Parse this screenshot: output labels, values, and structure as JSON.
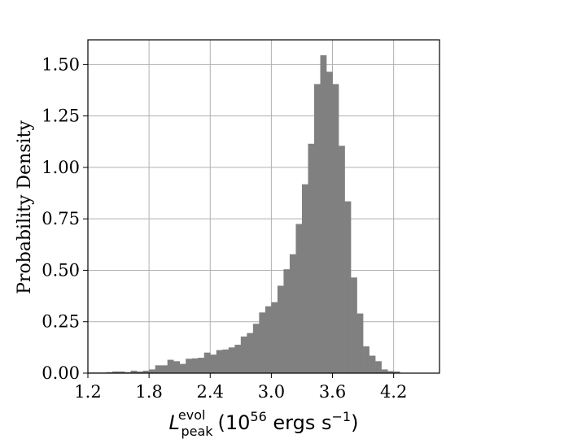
{
  "chart_data": {
    "type": "bar",
    "xlabel": {
      "symbol": "L",
      "superscript": "evol",
      "subscript": "peak",
      "units_base": "(10",
      "units_exp": "56",
      "units_mid": " ergs s",
      "units_exp2": "−1",
      "units_end": ")"
    },
    "ylabel": "Probability Density",
    "xlim": [
      1.2,
      4.65
    ],
    "ylim": [
      0.0,
      1.62
    ],
    "xticks": [
      1.2,
      1.8,
      2.4,
      3.0,
      3.6,
      4.2
    ],
    "xtick_labels": [
      "1.2",
      "1.8",
      "2.4",
      "3.0",
      "3.6",
      "4.2"
    ],
    "yticks": [
      0.0,
      0.25,
      0.5,
      0.75,
      1.0,
      1.25,
      1.5
    ],
    "ytick_labels": [
      "0.00",
      "0.25",
      "0.50",
      "0.75",
      "1.00",
      "1.25",
      "1.50"
    ],
    "grid": true,
    "bar_color": "#808080",
    "bin_start": 1.2,
    "bin_width": 0.06,
    "values": [
      0.003,
      0.003,
      0.003,
      0.005,
      0.008,
      0.008,
      0.005,
      0.012,
      0.008,
      0.012,
      0.018,
      0.038,
      0.038,
      0.065,
      0.058,
      0.045,
      0.07,
      0.072,
      0.075,
      0.1,
      0.09,
      0.112,
      0.115,
      0.125,
      0.138,
      0.178,
      0.195,
      0.24,
      0.295,
      0.325,
      0.345,
      0.425,
      0.505,
      0.578,
      0.725,
      0.918,
      1.115,
      1.405,
      1.545,
      1.465,
      1.405,
      1.105,
      0.835,
      0.465,
      0.29,
      0.13,
      0.085,
      0.058,
      0.018,
      0.01,
      0.008,
      0.002
    ]
  }
}
